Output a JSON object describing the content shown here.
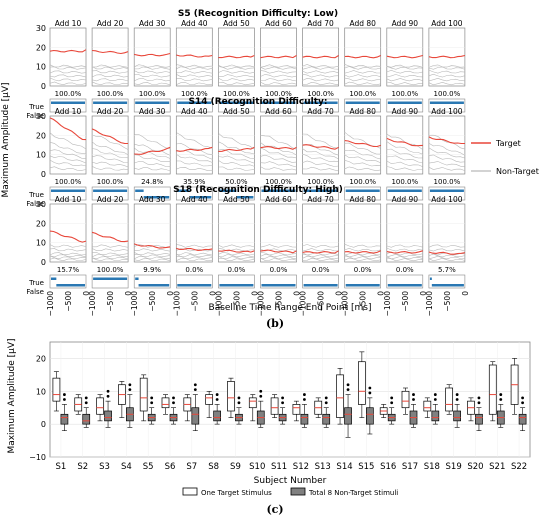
{
  "panel_b": {
    "add_labels": [
      "Add 10",
      "Add 20",
      "Add 30",
      "Add 40",
      "Add 50",
      "Add 60",
      "Add 70",
      "Add 80",
      "Add 90",
      "Add 100"
    ],
    "ylabel": "Maximum Amplitude [µV]",
    "xlabel": "Baseline Time Range End Point [ms]",
    "yticks": [
      "0",
      "10",
      "20",
      "30"
    ],
    "xticks": [
      "−1000",
      "−500",
      "0"
    ],
    "true_label": "True",
    "false_label": "False",
    "caption": "(b)",
    "legend": {
      "target": "Target",
      "nontarget": "Non-Target"
    },
    "colors": {
      "target": "#e8473a",
      "nontarget": "#b9b9b9",
      "bar": "#2a78b3"
    }
  },
  "panel_c": {
    "ylabel": "Maximum Amplitude [µV]",
    "xlabel": "Subject Number",
    "yticks": [
      "−10",
      "0",
      "10",
      "20"
    ],
    "legend": {
      "target": "One Target Stimulus",
      "nontarget": "Total 8 Non-Target Stimuli"
    },
    "caption": "(c)"
  },
  "chart_data": [
    {
      "type": "line",
      "title": "S5 (Recognition Difficulty: Low)",
      "conditions": [
        "Add 10",
        "Add 20",
        "Add 30",
        "Add 40",
        "Add 50",
        "Add 60",
        "Add 70",
        "Add 80",
        "Add 90",
        "Add 100"
      ],
      "accuracy": [
        "100.0%",
        "100.0%",
        "100.0%",
        "100.0%",
        "100.0%",
        "100.0%",
        "100.0%",
        "100.0%",
        "100.0%",
        "100.0%"
      ],
      "true_fraction": [
        1,
        1,
        1,
        1,
        1,
        1,
        1,
        1,
        1,
        1
      ],
      "target_start": [
        18,
        18,
        16,
        16,
        15,
        15,
        15,
        15,
        15,
        15
      ],
      "target_end": [
        18,
        17,
        16,
        15,
        15,
        15,
        15,
        15,
        15,
        15
      ],
      "nontarget_levels": [
        1,
        3,
        5,
        7,
        9,
        10
      ],
      "xlim": [
        -1000,
        0
      ],
      "ylim": [
        0,
        30
      ]
    },
    {
      "type": "line",
      "title": "S14 (Recognition Difficulty:",
      "conditions": [
        "Add 10",
        "Add 20",
        "Add 30",
        "Add 40",
        "Add 50",
        "Add 60",
        "Add 70",
        "Add 80",
        "Add 90",
        "Add 100"
      ],
      "accuracy": [
        "100.0%",
        "100.0%",
        "24.8%",
        "35.9%",
        "50.0%",
        "100.0%",
        "100.0%",
        "100.0%",
        "100.0%",
        "100.0%"
      ],
      "true_fraction": [
        1,
        1,
        0.248,
        0.359,
        0.5,
        1,
        1,
        1,
        1,
        1
      ],
      "target_start": [
        29,
        23,
        10,
        12,
        12,
        14,
        15,
        17,
        18,
        19
      ],
      "target_end": [
        17,
        15,
        13,
        13,
        13,
        13,
        13,
        14,
        14,
        15
      ],
      "nontarget_levels": [
        2,
        4,
        6,
        8,
        10,
        13
      ],
      "xlim": [
        -1000,
        0
      ],
      "ylim": [
        0,
        30
      ]
    },
    {
      "type": "line",
      "title": "S18 (Recognition Difficulty: High)",
      "conditions": [
        "Add 10",
        "Add 20",
        "Add 30",
        "Add 40",
        "Add 50",
        "Add 60",
        "Add 70",
        "Add 80",
        "Add 90",
        "Add 100"
      ],
      "accuracy": [
        "15.7%",
        "100.0%",
        "9.9%",
        "0.0%",
        "0.0%",
        "0.0%",
        "0.0%",
        "0.0%",
        "0.0%",
        "5.7%"
      ],
      "true_fraction": [
        0.157,
        1,
        0.099,
        0,
        0,
        0,
        0,
        0,
        0,
        0.057
      ],
      "target_start": [
        16,
        15,
        9,
        7,
        6,
        6,
        5,
        5,
        5,
        5
      ],
      "target_end": [
        10,
        10,
        7,
        6,
        5,
        5,
        5,
        5,
        5,
        4
      ],
      "nontarget_levels": [
        1,
        2,
        3,
        4,
        6,
        8
      ],
      "xlim": [
        -1000,
        0
      ],
      "ylim": [
        0,
        30
      ]
    },
    {
      "type": "box",
      "xlabel": "Subject Number",
      "ylabel": "Maximum Amplitude [µV]",
      "ylim": [
        -10,
        25
      ],
      "categories": [
        "S1",
        "S2",
        "S3",
        "S4",
        "S5",
        "S6",
        "S7",
        "S8",
        "S9",
        "S10",
        "S11",
        "S12",
        "S13",
        "S14",
        "S15",
        "S16",
        "S17",
        "S18",
        "S19",
        "S20",
        "S21",
        "S22"
      ],
      "series": [
        {
          "name": "One Target Stimulus",
          "boxes": [
            [
              4,
              7,
              9,
              14,
              16
            ],
            [
              3,
              4,
              6,
              8,
              9
            ],
            [
              1,
              3,
              5,
              8,
              9
            ],
            [
              2,
              6,
              9,
              12,
              13
            ],
            [
              1,
              4,
              8,
              14,
              15
            ],
            [
              3,
              5,
              6,
              8,
              9
            ],
            [
              1,
              4,
              6,
              8,
              9
            ],
            [
              2,
              6,
              8,
              9,
              10
            ],
            [
              2,
              4,
              8,
              13,
              14
            ],
            [
              1,
              5,
              7,
              8,
              9
            ],
            [
              2,
              3,
              5,
              8,
              9
            ],
            [
              1,
              3,
              5,
              6,
              7
            ],
            [
              2,
              3,
              5,
              7,
              8
            ],
            [
              0,
              2,
              8,
              15,
              17
            ],
            [
              2,
              6,
              10,
              19,
              22
            ],
            [
              2,
              3,
              4,
              5,
              6
            ],
            [
              3,
              5,
              7,
              10,
              11
            ],
            [
              2,
              4,
              5,
              7,
              8
            ],
            [
              3,
              4,
              6,
              11,
              12
            ],
            [
              1,
              3,
              5,
              7,
              8
            ],
            [
              1,
              3,
              9,
              18,
              19
            ],
            [
              3,
              6,
              12,
              18,
              20
            ]
          ]
        },
        {
          "name": "Total 8 Non-Target Stimuli",
          "boxes": [
            [
              -2,
              0,
              2,
              3,
              6
            ],
            [
              -1,
              0,
              1,
              3,
              5
            ],
            [
              -1,
              1,
              2,
              4,
              7
            ],
            [
              -1,
              1,
              3,
              5,
              9
            ],
            [
              0,
              1,
              2,
              3,
              5
            ],
            [
              0,
              1,
              2,
              3,
              5
            ],
            [
              -2,
              0,
              3,
              5,
              9
            ],
            [
              0,
              1,
              2,
              4,
              6
            ],
            [
              0,
              1,
              2,
              3,
              5
            ],
            [
              -1,
              0,
              2,
              4,
              7
            ],
            [
              0,
              1,
              2,
              3,
              5
            ],
            [
              -1,
              0,
              2,
              3,
              6
            ],
            [
              -1,
              0,
              2,
              3,
              5
            ],
            [
              -4,
              0,
              3,
              5,
              9
            ],
            [
              -3,
              0,
              3,
              5,
              8
            ],
            [
              0,
              1,
              2,
              3,
              5
            ],
            [
              -1,
              0,
              2,
              4,
              6
            ],
            [
              0,
              1,
              2,
              4,
              6
            ],
            [
              -1,
              1,
              2,
              4,
              6
            ],
            [
              -2,
              0,
              2,
              3,
              5
            ],
            [
              -1,
              0,
              2,
              4,
              6
            ],
            [
              -2,
              0,
              2,
              3,
              5
            ]
          ]
        }
      ]
    }
  ]
}
